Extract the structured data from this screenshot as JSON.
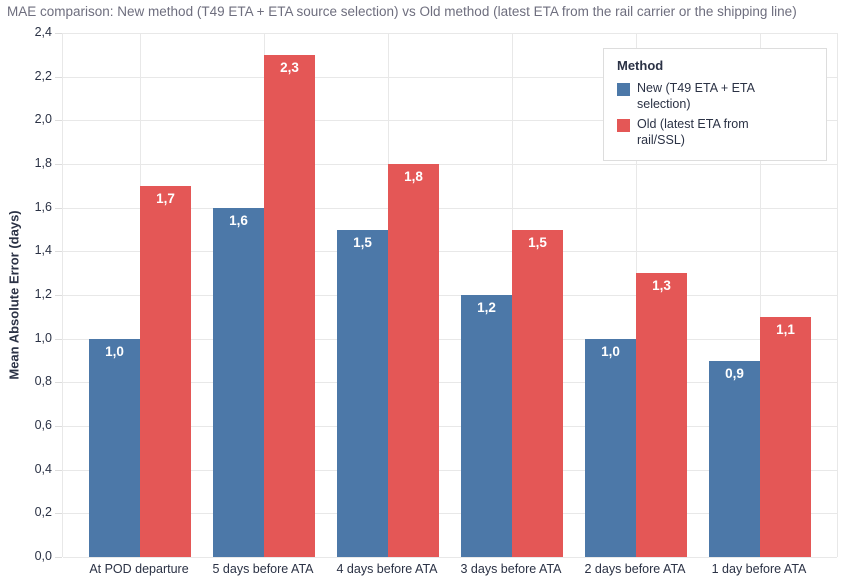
{
  "title": "MAE comparison: New method (T49 ETA + ETA source selection) vs Old method (latest ETA from the rail carrier or the shipping line)",
  "colors": {
    "new_series": "#4C78A8",
    "old_series": "#E45756",
    "grid": "#e8e8e8",
    "axis_text": "#2b3245",
    "title_text": "#6e6e7e",
    "bar_label_text": "#ffffff",
    "legend_border": "#dddddd",
    "background": "#ffffff"
  },
  "legend": {
    "title": "Method",
    "items": [
      {
        "label": "New (T49 ETA + ETA selection)",
        "color": "#4C78A8"
      },
      {
        "label": "Old (latest ETA from rail/SSL)",
        "color": "#E45756"
      }
    ]
  },
  "chart_data": {
    "type": "bar",
    "grouped": true,
    "title": "MAE comparison: New method (T49 ETA + ETA source selection) vs Old method (latest ETA from the rail carrier or the shipping line)",
    "xlabel": "",
    "ylabel": "Mean Absolute Error (days)",
    "ylim": [
      0,
      2.4
    ],
    "ytick_step": 0.2,
    "ytick_labels": [
      "0,0",
      "0,2",
      "0,4",
      "0,6",
      "0,8",
      "1,0",
      "1,2",
      "1,4",
      "1,6",
      "1,8",
      "2,0",
      "2,2",
      "2,4"
    ],
    "decimal_separator": ",",
    "grid": true,
    "legend_position": "top-right",
    "categories": [
      "At POD departure",
      "5 days before ATA",
      "4 days before ATA",
      "3 days before ATA",
      "2 days before ATA",
      "1 day before ATA"
    ],
    "series": [
      {
        "name": "New (T49 ETA + ETA selection)",
        "color": "#4C78A8",
        "values": [
          1.0,
          1.6,
          1.5,
          1.2,
          1.0,
          0.9
        ],
        "labels": [
          "1,0",
          "1,6",
          "1,5",
          "1,2",
          "1,0",
          "0,9"
        ]
      },
      {
        "name": "Old (latest ETA from rail/SSL)",
        "color": "#E45756",
        "values": [
          1.7,
          2.3,
          1.8,
          1.5,
          1.3,
          1.1
        ],
        "labels": [
          "1,7",
          "2,3",
          "1,8",
          "1,5",
          "1,3",
          "1,1"
        ]
      }
    ]
  }
}
